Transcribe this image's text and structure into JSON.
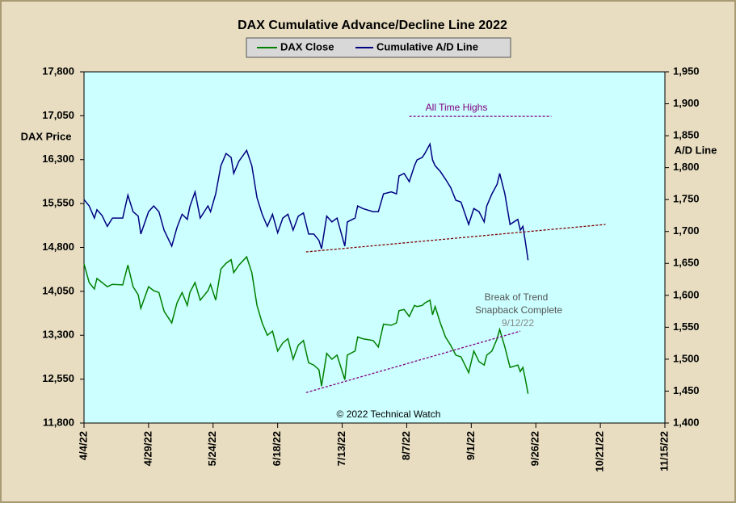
{
  "chart_data": {
    "type": "line",
    "title": "DAX Cumulative  Advance/Decline  Line 2022",
    "y_label": "DAX Price",
    "y2_label": "A/D Line",
    "x": [
      "2022-04-04",
      "2022-04-06",
      "2022-04-08",
      "2022-04-09",
      "2022-04-11",
      "2022-04-13",
      "2022-04-15",
      "2022-04-19",
      "2022-04-21",
      "2022-04-23",
      "2022-04-25",
      "2022-04-26",
      "2022-04-29",
      "2022-05-01",
      "2022-05-03",
      "2022-05-05",
      "2022-05-08",
      "2022-05-10",
      "2022-05-12",
      "2022-05-14",
      "2022-05-15",
      "2022-05-17",
      "2022-05-19",
      "2022-05-22",
      "2022-05-23",
      "2022-05-25",
      "2022-05-27",
      "2022-05-29",
      "2022-05-31",
      "2022-06-01",
      "2022-06-03",
      "2022-06-06",
      "2022-06-08",
      "2022-06-10",
      "2022-06-12",
      "2022-06-14",
      "2022-06-16",
      "2022-06-18",
      "2022-06-20",
      "2022-06-22",
      "2022-06-24",
      "2022-06-26",
      "2022-06-28",
      "2022-06-30",
      "2022-07-02",
      "2022-07-04",
      "2022-07-05",
      "2022-07-07",
      "2022-07-09",
      "2022-07-11",
      "2022-07-14",
      "2022-07-15",
      "2022-07-18",
      "2022-07-19",
      "2022-07-21",
      "2022-07-25",
      "2022-07-27",
      "2022-07-29",
      "2022-08-01",
      "2022-08-03",
      "2022-08-04",
      "2022-08-06",
      "2022-08-08",
      "2022-08-10",
      "2022-08-11",
      "2022-08-13",
      "2022-08-14",
      "2022-08-16",
      "2022-08-17",
      "2022-08-18",
      "2022-08-20",
      "2022-08-22",
      "2022-08-24",
      "2022-08-26",
      "2022-08-28",
      "2022-08-31",
      "2022-09-02",
      "2022-09-04",
      "2022-09-06",
      "2022-09-07",
      "2022-09-09",
      "2022-09-11",
      "2022-09-12",
      "2022-09-14",
      "2022-09-16",
      "2022-09-19",
      "2022-09-20",
      "2022-09-21",
      "2022-09-22",
      "2022-09-23"
    ],
    "series": [
      {
        "name": "DAX Close",
        "color": "#008000",
        "values": [
          14520,
          14200,
          14090,
          14270,
          14200,
          14130,
          14170,
          14160,
          14500,
          14130,
          13990,
          13760,
          14130,
          14060,
          14030,
          13710,
          13510,
          13850,
          14030,
          13810,
          14030,
          14200,
          13900,
          14060,
          14170,
          13900,
          14430,
          14530,
          14590,
          14370,
          14500,
          14640,
          14370,
          13810,
          13510,
          13300,
          13370,
          13030,
          13170,
          13240,
          12890,
          13130,
          13210,
          12830,
          12790,
          12710,
          12430,
          12990,
          12890,
          12960,
          12540,
          12960,
          13030,
          13270,
          13240,
          13210,
          13100,
          13490,
          13470,
          13510,
          13720,
          13740,
          13620,
          13810,
          13790,
          13810,
          13850,
          13900,
          13650,
          13790,
          13510,
          13270,
          13130,
          12960,
          12930,
          12660,
          13030,
          12850,
          12790,
          12960,
          13030,
          13240,
          13400,
          13100,
          12750,
          12790,
          12680,
          12750,
          12540,
          12300
        ]
      },
      {
        "name": "Cumulative A/D Line",
        "color": "#000080",
        "axis": "y2",
        "values": [
          1750,
          1740,
          1721,
          1734,
          1725,
          1708,
          1721,
          1721,
          1757,
          1731,
          1724,
          1696,
          1731,
          1740,
          1731,
          1702,
          1677,
          1706,
          1727,
          1719,
          1739,
          1762,
          1721,
          1740,
          1731,
          1759,
          1803,
          1822,
          1816,
          1791,
          1810,
          1827,
          1803,
          1753,
          1727,
          1708,
          1727,
          1698,
          1721,
          1727,
          1702,
          1724,
          1729,
          1696,
          1696,
          1686,
          1673,
          1724,
          1715,
          1721,
          1677,
          1715,
          1721,
          1740,
          1736,
          1731,
          1731,
          1759,
          1762,
          1759,
          1787,
          1791,
          1778,
          1803,
          1812,
          1816,
          1822,
          1837,
          1812,
          1803,
          1794,
          1782,
          1769,
          1749,
          1746,
          1711,
          1736,
          1731,
          1715,
          1740,
          1759,
          1774,
          1791,
          1759,
          1711,
          1719,
          1702,
          1708,
          1683,
          1655
        ]
      }
    ],
    "trend_lines": [
      {
        "color": "#800000",
        "axis": "y2",
        "x": [
          "2022-06-29",
          "2022-10-23"
        ],
        "values": [
          1668,
          1711
        ]
      },
      {
        "color": "#800080",
        "x": [
          "2022-06-29",
          "2022-09-20"
        ],
        "values": [
          12320,
          13370
        ]
      },
      {
        "color": "#800080",
        "x": [
          "2022-08-08",
          "2022-10-02"
        ],
        "values": [
          17040,
          17040
        ]
      }
    ],
    "annotations": [
      "All Time Highs",
      "Break of Trend",
      "Snapback Complete",
      "9/12/22"
    ],
    "credit": "© 2022 Technical Watch",
    "xlim": [
      "2022-04-04",
      "2022-11-15"
    ],
    "xticks": [
      {
        "value": "2022-04-04",
        "label": "4/4/22"
      },
      {
        "value": "2022-04-29",
        "label": "4/29/22"
      },
      {
        "value": "2022-05-24",
        "label": "5/24/22"
      },
      {
        "value": "2022-06-18",
        "label": "6/18/22"
      },
      {
        "value": "2022-07-13",
        "label": "7/13/22"
      },
      {
        "value": "2022-08-07",
        "label": "8/7/22"
      },
      {
        "value": "2022-09-01",
        "label": "9/1/22"
      },
      {
        "value": "2022-09-26",
        "label": "9/26/22"
      },
      {
        "value": "2022-10-21",
        "label": "10/21/22"
      },
      {
        "value": "2022-11-15",
        "label": "11/15/22"
      }
    ],
    "ylim": [
      11800,
      17800
    ],
    "yticks": [
      {
        "value": 11800,
        "label": "11,800"
      },
      {
        "value": 12550,
        "label": "12,550"
      },
      {
        "value": 13300,
        "label": "13,300"
      },
      {
        "value": 14050,
        "label": "14,050"
      },
      {
        "value": 14800,
        "label": "14,800"
      },
      {
        "value": 15550,
        "label": "15,550"
      },
      {
        "value": 16300,
        "label": "16,300"
      },
      {
        "value": 17050,
        "label": "17,050"
      },
      {
        "value": 17800,
        "label": "17,800"
      }
    ],
    "y2lim": [
      1400,
      1950
    ],
    "y2ticks": [
      {
        "value": 1400,
        "label": "1,400"
      },
      {
        "value": 1450,
        "label": "1,450"
      },
      {
        "value": 1500,
        "label": "1,500"
      },
      {
        "value": 1550,
        "label": "1,550"
      },
      {
        "value": 1600,
        "label": "1,600"
      },
      {
        "value": 1650,
        "label": "1,650"
      },
      {
        "value": 1700,
        "label": "1,700"
      },
      {
        "value": 1750,
        "label": "1,750"
      },
      {
        "value": 1800,
        "label": "1,800"
      },
      {
        "value": 1850,
        "label": "1,850"
      },
      {
        "value": 1900,
        "label": "1,900"
      },
      {
        "value": 1950,
        "label": "1,950"
      }
    ],
    "grid": false,
    "legend": "top"
  }
}
